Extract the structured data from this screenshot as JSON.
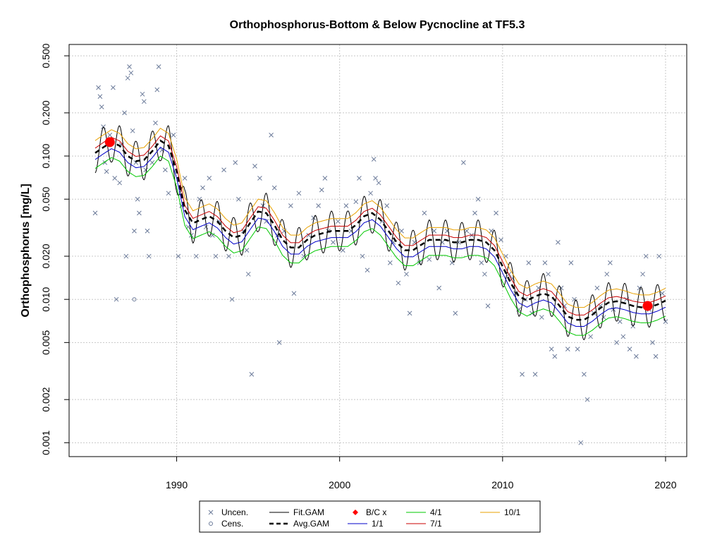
{
  "chart_data": {
    "type": "line",
    "title": "Orthophosphorus-Bottom & Below Pycnocline at TF5.3",
    "ylabel": "Orthophosphorus [mg/L]",
    "xlabel": "",
    "y_scale": "log",
    "xlim": [
      1983.4,
      2021.3
    ],
    "ylim": [
      0.0008,
      0.6
    ],
    "x_ticks": [
      1990,
      2000,
      2010,
      2020
    ],
    "x_tick_labels": [
      "1990",
      "2000",
      "2010",
      "2020"
    ],
    "y_ticks": [
      0.001,
      0.002,
      0.005,
      0.01,
      0.02,
      0.05,
      0.1,
      0.2,
      0.5
    ],
    "y_tick_labels": [
      "0.001",
      "0.002",
      "0.005",
      "0.010",
      "0.020",
      "0.050",
      "0.100",
      "0.200",
      "0.500"
    ],
    "grid": true,
    "legend_position": "bottom",
    "legend": [
      {
        "key": "uncen",
        "label": "Uncen.",
        "symbol": "x",
        "color": "#6b7a99"
      },
      {
        "key": "fit",
        "label": "Fit.GAM",
        "symbol": "line",
        "color": "#000000"
      },
      {
        "key": "bc",
        "label": "B/C x",
        "symbol": "diamond",
        "color": "#ff0000"
      },
      {
        "key": "s41",
        "label": "4/1",
        "symbol": "line",
        "color": "#00c800"
      },
      {
        "key": "s101",
        "label": "10/1",
        "symbol": "line",
        "color": "#e8a000"
      },
      {
        "key": "cens",
        "label": "Cens.",
        "symbol": "circle",
        "color": "#6b7a99"
      },
      {
        "key": "avg",
        "label": "Avg.GAM",
        "symbol": "dashed",
        "color": "#000000"
      },
      {
        "key": "s11",
        "label": "1/1",
        "symbol": "line",
        "color": "#0000c8"
      },
      {
        "key": "s71",
        "label": "7/1",
        "symbol": "line",
        "color": "#c80000"
      }
    ],
    "avg_gam": {
      "x": [
        1985.0,
        1985.5,
        1986.0,
        1986.5,
        1987.0,
        1987.5,
        1988.0,
        1988.5,
        1989.0,
        1989.5,
        1990.0,
        1990.5,
        1991.0,
        1991.5,
        1992.0,
        1992.5,
        1993.0,
        1993.5,
        1994.0,
        1994.5,
        1995.0,
        1995.5,
        1996.0,
        1996.5,
        1997.0,
        1997.5,
        1998.0,
        1998.5,
        1999.0,
        1999.5,
        2000.0,
        2000.5,
        2001.0,
        2001.5,
        2002.0,
        2002.5,
        2003.0,
        2003.5,
        2004.0,
        2004.5,
        2005.0,
        2005.5,
        2006.0,
        2006.5,
        2007.0,
        2007.5,
        2008.0,
        2008.5,
        2009.0,
        2009.5,
        2010.0,
        2010.5,
        2011.0,
        2011.5,
        2012.0,
        2012.5,
        2013.0,
        2013.5,
        2014.0,
        2014.5,
        2015.0,
        2015.5,
        2016.0,
        2016.5,
        2017.0,
        2017.5,
        2018.0,
        2018.5,
        2019.0,
        2019.5,
        2020.0
      ],
      "y": [
        0.105,
        0.115,
        0.125,
        0.118,
        0.1,
        0.092,
        0.094,
        0.108,
        0.128,
        0.118,
        0.078,
        0.042,
        0.034,
        0.036,
        0.038,
        0.035,
        0.03,
        0.027,
        0.028,
        0.034,
        0.041,
        0.04,
        0.033,
        0.026,
        0.023,
        0.023,
        0.026,
        0.028,
        0.029,
        0.03,
        0.03,
        0.03,
        0.033,
        0.038,
        0.04,
        0.036,
        0.03,
        0.025,
        0.022,
        0.022,
        0.024,
        0.026,
        0.026,
        0.026,
        0.025,
        0.025,
        0.026,
        0.026,
        0.025,
        0.022,
        0.017,
        0.013,
        0.0105,
        0.0098,
        0.0105,
        0.011,
        0.0105,
        0.009,
        0.0076,
        0.0072,
        0.0072,
        0.0078,
        0.0087,
        0.0095,
        0.0097,
        0.0094,
        0.009,
        0.0088,
        0.0088,
        0.0092,
        0.0098
      ]
    },
    "seasonal_series": [
      {
        "name": "1/1",
        "color": "#0000c8",
        "factor": 0.9
      },
      {
        "name": "4/1",
        "color": "#00c800",
        "factor": 0.78
      },
      {
        "name": "7/1",
        "color": "#c80000",
        "factor": 1.08
      },
      {
        "name": "10/1",
        "color": "#e8a000",
        "factor": 1.22
      }
    ],
    "fit_gam_amplitude": 0.32,
    "bc_points": [
      {
        "x": 1985.9,
        "y": 0.125
      },
      {
        "x": 2018.9,
        "y": 0.009
      }
    ],
    "uncensored_points": [
      [
        1985.0,
        0.04
      ],
      [
        1985.2,
        0.3
      ],
      [
        1985.3,
        0.26
      ],
      [
        1985.4,
        0.22
      ],
      [
        1985.5,
        0.16
      ],
      [
        1985.6,
        0.09
      ],
      [
        1985.7,
        0.078
      ],
      [
        1985.9,
        0.14
      ],
      [
        1986.1,
        0.3
      ],
      [
        1986.2,
        0.07
      ],
      [
        1986.3,
        0.01
      ],
      [
        1986.5,
        0.065
      ],
      [
        1986.6,
        0.12
      ],
      [
        1986.8,
        0.2
      ],
      [
        1986.9,
        0.02
      ],
      [
        1987.0,
        0.35
      ],
      [
        1987.1,
        0.42
      ],
      [
        1987.2,
        0.38
      ],
      [
        1987.3,
        0.15
      ],
      [
        1987.4,
        0.03
      ],
      [
        1987.5,
        0.09
      ],
      [
        1987.6,
        0.05
      ],
      [
        1987.7,
        0.04
      ],
      [
        1987.9,
        0.27
      ],
      [
        1988.0,
        0.24
      ],
      [
        1988.1,
        0.08
      ],
      [
        1988.2,
        0.03
      ],
      [
        1988.3,
        0.02
      ],
      [
        1988.5,
        0.09
      ],
      [
        1988.7,
        0.17
      ],
      [
        1988.8,
        0.29
      ],
      [
        1988.9,
        0.42
      ],
      [
        1989.1,
        0.11
      ],
      [
        1989.3,
        0.08
      ],
      [
        1989.5,
        0.055
      ],
      [
        1989.8,
        0.14
      ],
      [
        1990.1,
        0.02
      ],
      [
        1990.3,
        0.045
      ],
      [
        1990.5,
        0.07
      ],
      [
        1990.7,
        0.032
      ],
      [
        1990.9,
        0.028
      ],
      [
        1991.2,
        0.02
      ],
      [
        1991.4,
        0.05
      ],
      [
        1991.6,
        0.06
      ],
      [
        1991.8,
        0.032
      ],
      [
        1992.0,
        0.07
      ],
      [
        1992.2,
        0.028
      ],
      [
        1992.4,
        0.02
      ],
      [
        1992.6,
        0.035
      ],
      [
        1992.9,
        0.08
      ],
      [
        1993.2,
        0.02
      ],
      [
        1993.4,
        0.01
      ],
      [
        1993.6,
        0.09
      ],
      [
        1993.8,
        0.05
      ],
      [
        1994.1,
        0.03
      ],
      [
        1994.3,
        0.022
      ],
      [
        1994.4,
        0.015
      ],
      [
        1994.6,
        0.003
      ],
      [
        1994.8,
        0.085
      ],
      [
        1995.1,
        0.07
      ],
      [
        1995.3,
        0.045
      ],
      [
        1995.5,
        0.035
      ],
      [
        1995.8,
        0.14
      ],
      [
        1996.0,
        0.06
      ],
      [
        1996.2,
        0.028
      ],
      [
        1996.3,
        0.005
      ],
      [
        1996.6,
        0.03
      ],
      [
        1997.0,
        0.045
      ],
      [
        1997.2,
        0.011
      ],
      [
        1997.5,
        0.055
      ],
      [
        1997.8,
        0.02
      ],
      [
        1998.1,
        0.028
      ],
      [
        1998.4,
        0.037
      ],
      [
        1998.7,
        0.045
      ],
      [
        1998.9,
        0.058
      ],
      [
        1999.1,
        0.07
      ],
      [
        1999.3,
        0.03
      ],
      [
        1999.6,
        0.025
      ],
      [
        1999.9,
        0.035
      ],
      [
        2000.2,
        0.022
      ],
      [
        2000.4,
        0.045
      ],
      [
        2000.7,
        0.03
      ],
      [
        2001.0,
        0.048
      ],
      [
        2001.2,
        0.07
      ],
      [
        2001.4,
        0.02
      ],
      [
        2001.7,
        0.016
      ],
      [
        2001.9,
        0.055
      ],
      [
        2002.1,
        0.095
      ],
      [
        2002.2,
        0.07
      ],
      [
        2002.4,
        0.065
      ],
      [
        2002.6,
        0.035
      ],
      [
        2002.9,
        0.045
      ],
      [
        2003.1,
        0.018
      ],
      [
        2003.3,
        0.025
      ],
      [
        2003.6,
        0.013
      ],
      [
        2003.8,
        0.03
      ],
      [
        2004.1,
        0.015
      ],
      [
        2004.3,
        0.008
      ],
      [
        2004.6,
        0.025
      ],
      [
        2004.9,
        0.018
      ],
      [
        2005.2,
        0.04
      ],
      [
        2005.5,
        0.019
      ],
      [
        2005.8,
        0.03
      ],
      [
        2006.1,
        0.012
      ],
      [
        2006.3,
        0.025
      ],
      [
        2006.6,
        0.03
      ],
      [
        2006.9,
        0.018
      ],
      [
        2007.1,
        0.008
      ],
      [
        2007.3,
        0.025
      ],
      [
        2007.6,
        0.09
      ],
      [
        2007.8,
        0.03
      ],
      [
        2008.1,
        0.028
      ],
      [
        2008.3,
        0.04
      ],
      [
        2008.5,
        0.05
      ],
      [
        2008.7,
        0.018
      ],
      [
        2008.9,
        0.015
      ],
      [
        2009.1,
        0.009
      ],
      [
        2009.3,
        0.03
      ],
      [
        2009.6,
        0.04
      ],
      [
        2009.9,
        0.026
      ],
      [
        2010.2,
        0.02
      ],
      [
        2010.4,
        0.015
      ],
      [
        2010.6,
        0.014
      ],
      [
        2010.8,
        0.011
      ],
      [
        2011.0,
        0.0085
      ],
      [
        2011.2,
        0.003
      ],
      [
        2011.4,
        0.01
      ],
      [
        2011.6,
        0.018
      ],
      [
        2011.8,
        0.008
      ],
      [
        2012.0,
        0.003
      ],
      [
        2012.2,
        0.012
      ],
      [
        2012.4,
        0.0075
      ],
      [
        2012.6,
        0.018
      ],
      [
        2012.8,
        0.015
      ],
      [
        2013.0,
        0.0045
      ],
      [
        2013.2,
        0.004
      ],
      [
        2013.4,
        0.025
      ],
      [
        2013.6,
        0.012
      ],
      [
        2013.8,
        0.009
      ],
      [
        2014.0,
        0.0045
      ],
      [
        2014.2,
        0.018
      ],
      [
        2014.4,
        0.01
      ],
      [
        2014.6,
        0.0045
      ],
      [
        2014.8,
        0.001
      ],
      [
        2015.0,
        0.003
      ],
      [
        2015.2,
        0.002
      ],
      [
        2015.4,
        0.0055
      ],
      [
        2015.6,
        0.008
      ],
      [
        2015.8,
        0.012
      ],
      [
        2016.0,
        0.009
      ],
      [
        2016.2,
        0.0075
      ],
      [
        2016.4,
        0.015
      ],
      [
        2016.6,
        0.018
      ],
      [
        2016.8,
        0.0085
      ],
      [
        2017.0,
        0.005
      ],
      [
        2017.2,
        0.007
      ],
      [
        2017.4,
        0.0055
      ],
      [
        2017.6,
        0.01
      ],
      [
        2017.8,
        0.0045
      ],
      [
        2018.0,
        0.0065
      ],
      [
        2018.2,
        0.004
      ],
      [
        2018.4,
        0.012
      ],
      [
        2018.6,
        0.015
      ],
      [
        2018.8,
        0.02
      ],
      [
        2019.0,
        0.0085
      ],
      [
        2019.2,
        0.005
      ],
      [
        2019.4,
        0.004
      ],
      [
        2019.6,
        0.02
      ],
      [
        2019.8,
        0.011
      ],
      [
        2020.0,
        0.007
      ]
    ],
    "censored_points": [
      [
        1987.4,
        0.01
      ]
    ]
  }
}
